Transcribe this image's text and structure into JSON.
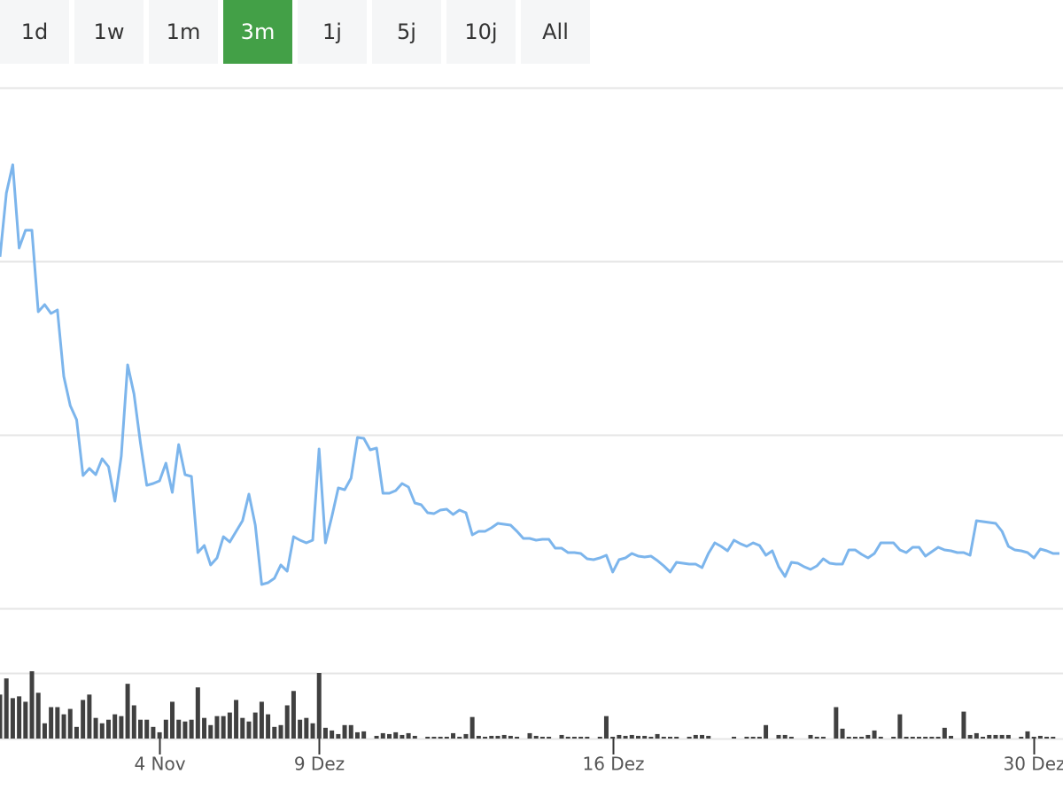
{
  "range_buttons": {
    "labels": [
      "1d",
      "1w",
      "1m",
      "3m",
      "1j",
      "5j",
      "10j",
      "All"
    ],
    "selected": "3m",
    "selected_color": "#43a047"
  },
  "chart_data": [
    {
      "type": "line",
      "xlim": [
        0,
        166
      ],
      "ylim": [
        0,
        588
      ],
      "yticks": [
        0,
        196,
        392,
        588
      ],
      "grid": true,
      "series": [
        {
          "color": "#7cb5ec",
          "values": [
            397,
            469,
            501,
            407,
            427,
            427,
            335,
            343,
            333,
            337,
            262,
            229,
            213,
            150,
            158,
            151,
            169,
            160,
            121,
            172,
            275,
            242,
            187,
            139,
            141,
            144,
            164,
            131,
            185,
            151,
            149,
            63,
            71,
            49,
            57,
            81,
            75,
            87,
            99,
            129,
            94,
            27,
            29,
            34,
            49,
            42,
            81,
            77,
            74,
            77,
            180,
            74,
            104,
            136,
            134,
            147,
            193,
            192,
            179,
            181,
            130,
            130,
            133,
            141,
            137,
            119,
            117,
            108,
            107,
            111,
            112,
            106,
            111,
            108,
            83,
            87,
            87,
            91,
            96,
            95,
            94,
            87,
            79,
            79,
            77,
            78,
            78,
            68,
            68,
            63,
            63,
            62,
            56,
            55,
            57,
            60,
            41,
            55,
            57,
            62,
            59,
            58,
            59,
            54,
            48,
            41,
            52,
            51,
            50,
            50,
            46,
            62,
            74,
            70,
            65,
            77,
            73,
            70,
            74,
            71,
            60,
            65,
            47,
            36,
            52,
            51,
            47,
            44,
            48,
            56,
            51,
            50,
            50,
            66,
            66,
            61,
            57,
            62,
            74,
            74,
            74,
            66,
            63,
            69,
            69,
            59,
            64,
            69,
            66,
            65,
            63,
            63,
            60,
            99,
            98,
            97,
            96,
            87,
            70,
            66,
            65,
            63,
            57,
            67,
            65,
            62,
            62
          ]
        }
      ]
    },
    {
      "type": "bar",
      "xlim": [
        0,
        166
      ],
      "ylim": [
        0,
        73
      ],
      "yticks": [
        0,
        73
      ],
      "grid": true,
      "color": "#404040",
      "xticks": [
        {
          "value": 25,
          "label": "4 Nov"
        },
        {
          "value": 50,
          "label": "9 Dez"
        },
        {
          "value": 96,
          "label": "16 Dez"
        },
        {
          "value": 162,
          "label": "30 Dez"
        }
      ],
      "values": [
        49,
        67,
        45,
        47,
        41,
        75,
        51,
        17,
        35,
        35,
        27,
        33,
        13,
        43,
        49,
        23,
        17,
        21,
        27,
        25,
        61,
        37,
        21,
        21,
        13,
        7,
        21,
        41,
        21,
        19,
        21,
        57,
        23,
        15,
        25,
        25,
        29,
        43,
        23,
        19,
        29,
        41,
        27,
        13,
        15,
        37,
        53,
        21,
        23,
        17,
        73,
        12,
        9,
        5,
        15,
        15,
        7,
        8,
        0,
        3,
        6,
        5,
        7,
        4,
        6,
        3,
        0,
        2,
        2,
        2,
        2,
        6,
        2,
        5,
        24,
        3,
        2,
        3,
        3,
        4,
        3,
        2,
        0,
        6,
        3,
        2,
        2,
        0,
        4,
        2,
        2,
        2,
        2,
        0,
        2,
        25,
        2,
        4,
        3,
        4,
        3,
        3,
        2,
        5,
        2,
        2,
        2,
        0,
        2,
        4,
        4,
        3,
        0,
        0,
        0,
        2,
        0,
        2,
        2,
        2,
        15,
        0,
        4,
        4,
        2,
        0,
        0,
        4,
        2,
        2,
        0,
        35,
        11,
        2,
        2,
        2,
        4,
        9,
        2,
        0,
        2,
        27,
        2,
        2,
        2,
        2,
        2,
        2,
        12,
        3,
        0,
        30,
        4,
        6,
        2,
        4,
        4,
        4,
        4,
        0,
        2,
        8,
        2,
        3,
        2,
        2,
        0
      ]
    }
  ]
}
